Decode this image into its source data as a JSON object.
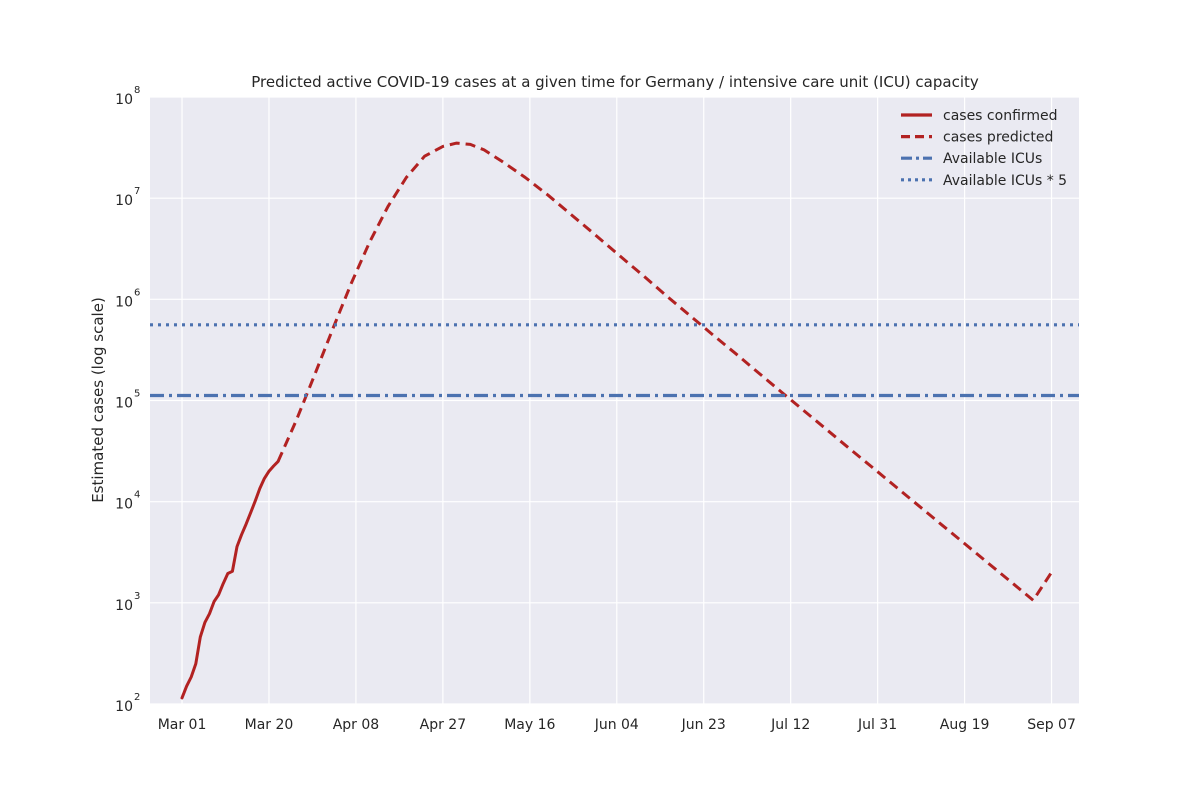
{
  "chart_data": {
    "type": "line",
    "title": "Predicted active COVID-19 cases at a given time for Germany / intensive care unit (ICU) capacity",
    "xlabel": "",
    "ylabel": "Estimated cases (log scale)",
    "yscale": "log",
    "ylim": [
      100,
      100000000
    ],
    "xlim": [
      "2020-02-23",
      "2020-09-13"
    ],
    "x_ticks": [
      {
        "date": "2020-03-01",
        "label": "Mar 01"
      },
      {
        "date": "2020-03-20",
        "label": "Mar 20"
      },
      {
        "date": "2020-04-08",
        "label": "Apr 08"
      },
      {
        "date": "2020-04-27",
        "label": "Apr 27"
      },
      {
        "date": "2020-05-16",
        "label": "May 16"
      },
      {
        "date": "2020-06-04",
        "label": "Jun 04"
      },
      {
        "date": "2020-06-23",
        "label": "Jun 23"
      },
      {
        "date": "2020-07-12",
        "label": "Jul 12"
      },
      {
        "date": "2020-07-31",
        "label": "Jul 31"
      },
      {
        "date": "2020-08-19",
        "label": "Aug 19"
      },
      {
        "date": "2020-09-07",
        "label": "Sep 07"
      }
    ],
    "y_ticks": [
      {
        "value": 100,
        "base": "10",
        "exp": "2"
      },
      {
        "value": 1000,
        "base": "10",
        "exp": "3"
      },
      {
        "value": 10000,
        "base": "10",
        "exp": "4"
      },
      {
        "value": 100000,
        "base": "10",
        "exp": "5"
      },
      {
        "value": 1000000,
        "base": "10",
        "exp": "6"
      },
      {
        "value": 10000000,
        "base": "10",
        "exp": "7"
      },
      {
        "value": 100000000,
        "base": "10",
        "exp": "8"
      }
    ],
    "grid": true,
    "legend_position": "top-right",
    "series": [
      {
        "name": "cases confirmed",
        "style": "solid",
        "color": "#b22222",
        "x": [
          "2020-03-01",
          "2020-03-02",
          "2020-03-03",
          "2020-03-04",
          "2020-03-05",
          "2020-03-06",
          "2020-03-07",
          "2020-03-08",
          "2020-03-09",
          "2020-03-10",
          "2020-03-11",
          "2020-03-12",
          "2020-03-13",
          "2020-03-14",
          "2020-03-15",
          "2020-03-16",
          "2020-03-17",
          "2020-03-18",
          "2020-03-19",
          "2020-03-20",
          "2020-03-21",
          "2020-03-22"
        ],
        "y": [
          115,
          150,
          185,
          250,
          460,
          640,
          780,
          1030,
          1200,
          1550,
          1950,
          2050,
          3600,
          4700,
          6000,
          7800,
          10200,
          13500,
          17000,
          20000,
          22500,
          25000
        ]
      },
      {
        "name": "cases predicted",
        "style": "dashed",
        "color": "#b22222",
        "x": [
          "2020-03-22",
          "2020-03-26",
          "2020-03-30",
          "2020-04-03",
          "2020-04-07",
          "2020-04-11",
          "2020-04-15",
          "2020-04-19",
          "2020-04-23",
          "2020-04-27",
          "2020-04-30",
          "2020-05-03",
          "2020-05-06",
          "2020-05-10",
          "2020-05-15",
          "2020-05-20",
          "2020-05-25",
          "2020-05-30",
          "2020-06-04",
          "2020-06-10",
          "2020-06-15",
          "2020-06-20",
          "2020-06-25",
          "2020-06-30",
          "2020-07-05",
          "2020-07-10",
          "2020-07-15",
          "2020-07-20",
          "2020-07-25",
          "2020-07-30",
          "2020-08-04",
          "2020-08-09",
          "2020-08-14",
          "2020-08-19",
          "2020-08-24",
          "2020-08-29",
          "2020-09-03",
          "2020-09-07"
        ],
        "y": [
          25000,
          64000,
          180000,
          520000,
          1450000,
          3700000,
          8300000,
          16000000,
          26000000,
          32500000,
          35000000,
          34000000,
          30000000,
          23000000,
          16000000,
          10700000,
          6900000,
          4450000,
          2850000,
          1680000,
          1070000,
          690000,
          445000,
          290000,
          187000,
          121000,
          78500,
          51000,
          33000,
          21500,
          14000,
          9100,
          5900,
          3850,
          2500,
          1630,
          1060,
          2000
        ]
      },
      {
        "name": "Available ICUs",
        "style": "dashdot",
        "color": "#4c72b0",
        "value": 112000
      },
      {
        "name": "Available ICUs * 5",
        "style": "dotted",
        "color": "#4c72b0",
        "value": 560000
      }
    ]
  },
  "colors": {
    "plot_background": "#eaeaf2",
    "grid": "#ffffff",
    "predicted_red": "#b22222",
    "icu_blue": "#4c72b0"
  }
}
